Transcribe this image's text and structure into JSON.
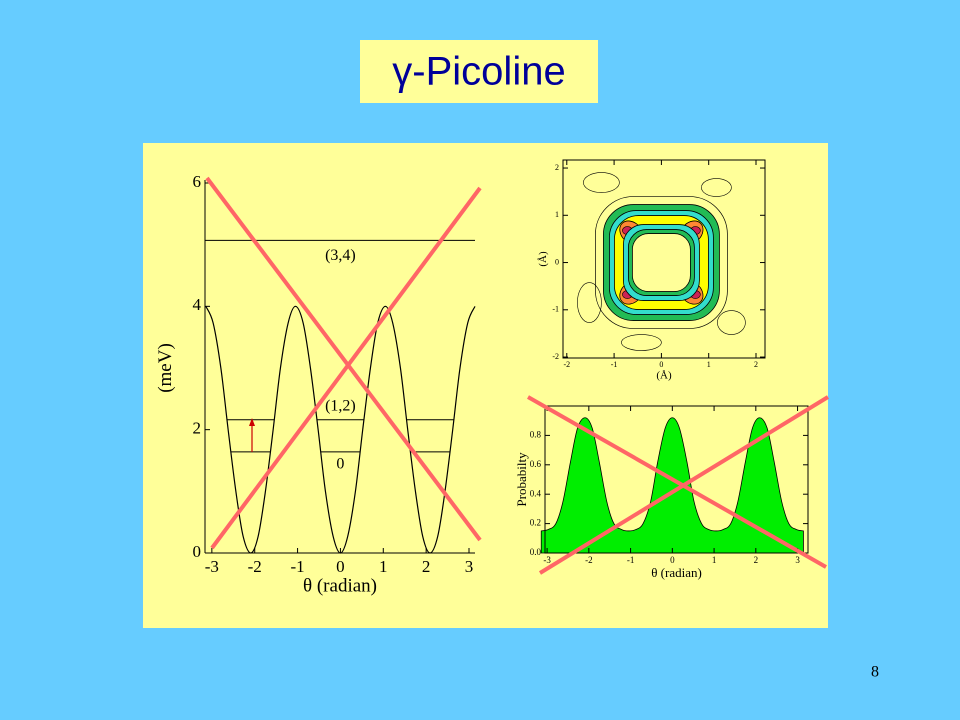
{
  "title": "γ-Picoline",
  "page_number": "8",
  "chart_data": [
    {
      "type": "line",
      "xlabel": "θ (radian)",
      "ylabel": "(meV)",
      "x": [
        -3.14,
        -2.97,
        -2.79,
        -2.62,
        -2.44,
        -2.27,
        -2.09,
        -1.92,
        -1.75,
        -1.57,
        -1.4,
        -1.22,
        -1.05,
        -0.87,
        -0.7,
        -0.52,
        -0.35,
        -0.17,
        0,
        0.17,
        0.35,
        0.52,
        0.7,
        0.87,
        1.05,
        1.22,
        1.4,
        1.57,
        1.75,
        1.92,
        2.09,
        2.27,
        2.44,
        2.62,
        2.79,
        2.97,
        3.14
      ],
      "values": [
        4,
        3.73,
        3,
        2,
        1,
        0.27,
        0,
        0.27,
        1,
        2,
        3,
        3.73,
        4,
        3.73,
        3,
        2,
        1,
        0.27,
        0,
        0.27,
        1,
        2,
        3,
        3.73,
        4,
        3.73,
        3,
        2,
        1,
        0.27,
        0,
        0.27,
        1,
        2,
        3,
        3.73,
        4
      ],
      "color": "#000000",
      "xlim": [
        -3.16,
        3.14
      ],
      "ylim": [
        0,
        6
      ],
      "xticks": [
        -3,
        -2,
        -1,
        0,
        1,
        2,
        3
      ],
      "yticks": [
        0,
        2,
        4,
        6
      ],
      "levels": [
        {
          "label": "(3,4)",
          "value": 5.07
        },
        {
          "label": "(1,2)",
          "value": 2.16
        },
        {
          "label": "0",
          "value": 1.64
        }
      ]
    },
    {
      "type": "contour",
      "xlabel": "(Å)",
      "ylabel": "(Å)",
      "xlim": [
        -2.08,
        2.19
      ],
      "ylim": [
        -2.02,
        2.17
      ],
      "xticks": [
        -2,
        -1,
        0,
        1,
        2
      ],
      "yticks": [
        -2,
        -1,
        0,
        1,
        2
      ]
    },
    {
      "type": "area",
      "xlabel": "θ (radian)",
      "ylabel": "Probabilty",
      "x": [
        -3.14,
        -2.97,
        -2.79,
        -2.62,
        -2.44,
        -2.27,
        -2.09,
        -1.92,
        -1.75,
        -1.57,
        -1.4,
        -1.22,
        -1.05,
        -0.87,
        -0.7,
        -0.52,
        -0.35,
        -0.17,
        0,
        0.17,
        0.35,
        0.52,
        0.7,
        0.87,
        1.05,
        1.22,
        1.4,
        1.57,
        1.75,
        1.92,
        2.09,
        2.27,
        2.44,
        2.62,
        2.79,
        2.97,
        3.14
      ],
      "values": [
        0.15,
        0.16,
        0.2,
        0.35,
        0.62,
        0.85,
        0.92,
        0.85,
        0.62,
        0.35,
        0.2,
        0.16,
        0.15,
        0.16,
        0.2,
        0.35,
        0.62,
        0.85,
        0.92,
        0.85,
        0.62,
        0.35,
        0.2,
        0.16,
        0.15,
        0.16,
        0.2,
        0.35,
        0.62,
        0.85,
        0.92,
        0.85,
        0.62,
        0.35,
        0.2,
        0.16,
        0.15
      ],
      "color": "#00ee00",
      "xlim": [
        -3.05,
        3.25
      ],
      "ylim": [
        0,
        1
      ],
      "xticks": [
        -3,
        -2,
        -1,
        0,
        1,
        2,
        3
      ],
      "yticks": [
        {
          "value": 0,
          "label": "0.0"
        },
        {
          "value": 0.2,
          "label": "0.2"
        },
        {
          "value": 0.4,
          "label": "0.4"
        },
        {
          "value": 0.6,
          "label": "0.6"
        },
        {
          "value": 0.8,
          "label": "0.8"
        }
      ]
    }
  ]
}
